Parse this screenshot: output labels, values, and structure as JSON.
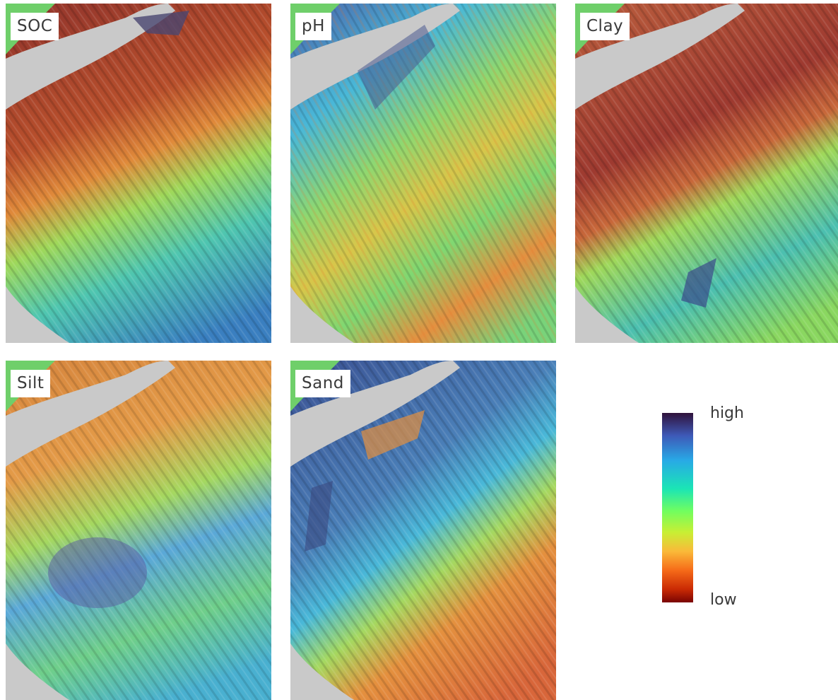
{
  "panels": [
    {
      "id": "soc",
      "label": "SOC"
    },
    {
      "id": "ph",
      "label": "pH"
    },
    {
      "id": "clay",
      "label": "Clay"
    },
    {
      "id": "silt",
      "label": "Silt"
    },
    {
      "id": "sand",
      "label": "Sand"
    }
  ],
  "legend": {
    "high_label": "high",
    "low_label": "low",
    "colors": [
      "#30123b",
      "#3e5ab8",
      "#28a9e6",
      "#1be5b5",
      "#72fe5e",
      "#c8ef34",
      "#faba39",
      "#f66b19",
      "#ca2a04",
      "#7a0403"
    ]
  },
  "colors": {
    "lake": "#c9c9c9",
    "background": "#ffffff"
  }
}
